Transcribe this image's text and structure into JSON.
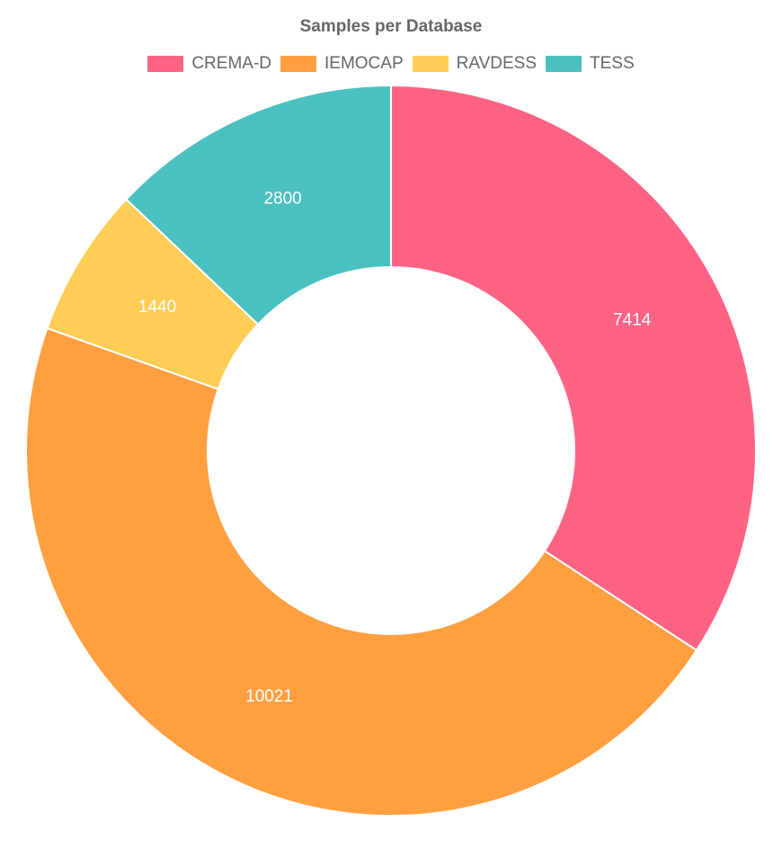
{
  "chart_data": {
    "type": "doughnut",
    "title": "Samples per Database",
    "categories": [
      "CREMA-D",
      "IEMOCAP",
      "RAVDESS",
      "TESS"
    ],
    "values": [
      7414,
      10021,
      1440,
      2800
    ],
    "colors": [
      "#ff6384",
      "#ff9f40",
      "#ffcd56",
      "#4bc0c0"
    ],
    "legend_position": "top"
  }
}
